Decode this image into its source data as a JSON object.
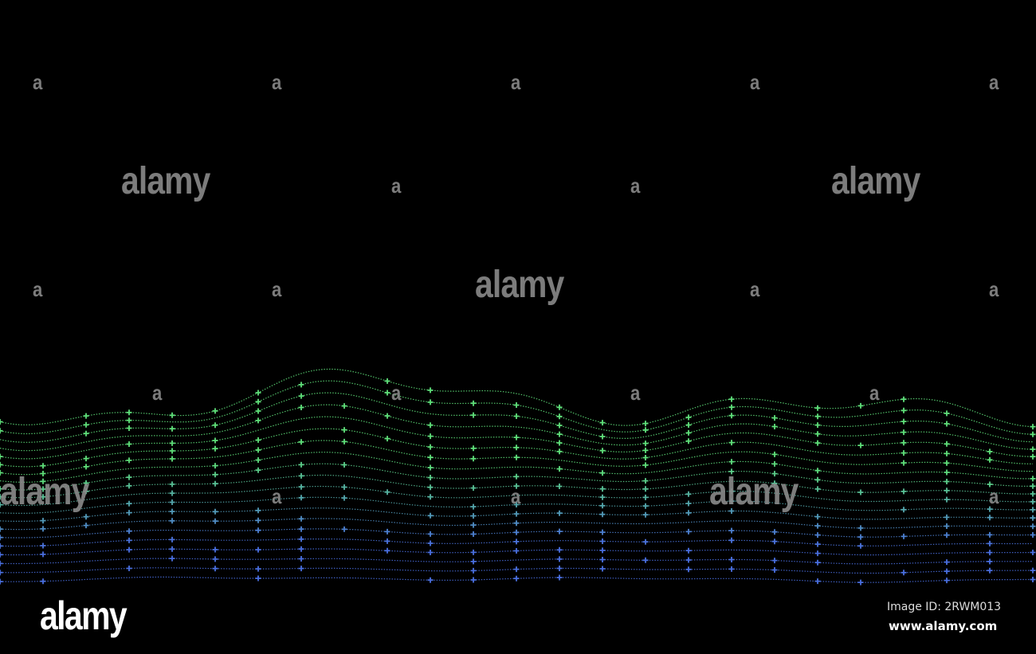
{
  "artwork": {
    "description_colors": {
      "background": "#000000",
      "top_wave": "#5fe07a",
      "bottom_wave": "#4a6fe0"
    }
  },
  "watermark": {
    "word": "alamy",
    "letter": "a"
  },
  "footer": {
    "logo": "alamy",
    "image_id": "Image ID: 2RWM013",
    "site": "www.alamy.com"
  }
}
